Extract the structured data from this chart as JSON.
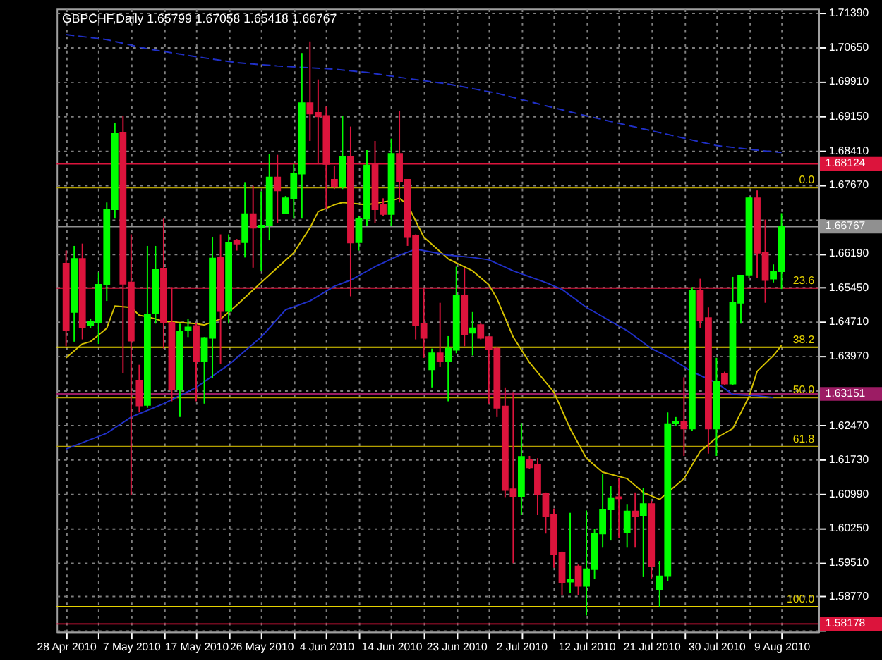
{
  "chart_data": {
    "type": "candlestick",
    "title": "GBPCHF,Daily  1.65799 1.67058 1.65418 1.66767",
    "categories": [
      "28 Apr 2010",
      null,
      null,
      null,
      null,
      null,
      null,
      null,
      "7 May 2010",
      null,
      null,
      null,
      null,
      null,
      null,
      null,
      "17 May 2010",
      null,
      null,
      null,
      null,
      null,
      null,
      null,
      "26 May 2010",
      null,
      null,
      null,
      null,
      null,
      null,
      null,
      "4 Jun 2010",
      null,
      null,
      null,
      null,
      null,
      null,
      null,
      "14 Jun 2010",
      null,
      null,
      null,
      null,
      null,
      null,
      null,
      "23 Jun 2010",
      null,
      null,
      null,
      null,
      null,
      null,
      null,
      "2 Jul 2010",
      null,
      null,
      null,
      null,
      null,
      null,
      null,
      "12 Jul 2010",
      null,
      null,
      null,
      null,
      null,
      null,
      null,
      "21 Jul 2010",
      null,
      null,
      null,
      null,
      null,
      null,
      null,
      "30 Jul 2010",
      null,
      null,
      null,
      null,
      null,
      null,
      null,
      "9 Aug 2010"
    ],
    "ohlc": [
      [
        1.6597,
        1.6625,
        1.6418,
        1.6452
      ],
      [
        1.6492,
        1.6635,
        1.6428,
        1.6607
      ],
      [
        1.6607,
        1.664,
        1.6433,
        1.6459
      ],
      [
        1.6464,
        1.6477,
        1.6457,
        1.6472
      ],
      [
        1.6469,
        1.6578,
        1.6423,
        1.6551
      ],
      [
        1.6551,
        1.6729,
        1.6516,
        1.6714
      ],
      [
        1.6714,
        1.6901,
        1.6694,
        1.6877
      ],
      [
        1.6879,
        1.6916,
        1.6359,
        1.6553
      ],
      [
        1.6556,
        1.666,
        1.6097,
        1.643
      ],
      [
        1.6344,
        1.6378,
        1.6275,
        1.629
      ],
      [
        1.6291,
        1.6635,
        1.6285,
        1.6487
      ],
      [
        1.6489,
        1.6635,
        1.6467,
        1.6583
      ],
      [
        1.6586,
        1.6694,
        1.6413,
        1.6469
      ],
      [
        1.6469,
        1.6546,
        1.6299,
        1.6324
      ],
      [
        1.6324,
        1.6467,
        1.6265,
        1.6449
      ],
      [
        1.6452,
        1.6477,
        1.6438,
        1.6459
      ],
      [
        1.6462,
        1.6469,
        1.6299,
        1.6386
      ],
      [
        1.6386,
        1.6438,
        1.6294,
        1.6436
      ],
      [
        1.6436,
        1.6654,
        1.6349,
        1.6608
      ],
      [
        1.661,
        1.666,
        1.638,
        1.6494
      ],
      [
        1.6494,
        1.666,
        1.6467,
        1.6642
      ],
      [
        1.6647,
        1.665,
        1.6625,
        1.664
      ],
      [
        1.6643,
        1.6773,
        1.661,
        1.6704
      ],
      [
        1.6704,
        1.6765,
        1.6588,
        1.6674
      ],
      [
        1.6676,
        1.6753,
        1.6581,
        1.6679
      ],
      [
        1.6679,
        1.6834,
        1.6647,
        1.6783
      ],
      [
        1.6783,
        1.6832,
        1.6684,
        1.6755
      ],
      [
        1.6706,
        1.6743,
        1.6704,
        1.6738
      ],
      [
        1.6738,
        1.6812,
        1.6694,
        1.6791
      ],
      [
        1.6791,
        1.7052,
        1.6694,
        1.6944
      ],
      [
        1.6944,
        1.7077,
        1.6862,
        1.6921
      ],
      [
        1.6923,
        1.6995,
        1.6812,
        1.6915
      ],
      [
        1.6916,
        1.6936,
        1.6714,
        1.6812
      ],
      [
        1.6778,
        1.6808,
        1.6758,
        1.6763
      ],
      [
        1.6763,
        1.6916,
        1.6758,
        1.6827
      ],
      [
        1.6827,
        1.6893,
        1.6526,
        1.6642
      ],
      [
        1.6643,
        1.6699,
        1.6625,
        1.6694
      ],
      [
        1.6694,
        1.6842,
        1.6679,
        1.6809
      ],
      [
        1.6812,
        1.6862,
        1.6684,
        1.6714
      ],
      [
        1.6724,
        1.6738,
        1.6699,
        1.6704
      ],
      [
        1.6704,
        1.6867,
        1.6679,
        1.6834
      ],
      [
        1.6834,
        1.6926,
        1.6729,
        1.6775
      ],
      [
        1.6778,
        1.6778,
        1.6635,
        1.6654
      ],
      [
        1.6657,
        1.666,
        1.6433,
        1.6464
      ],
      [
        1.6467,
        1.6544,
        1.6393,
        1.6436
      ],
      [
        1.6368,
        1.6413,
        1.6329,
        1.6403
      ],
      [
        1.6403,
        1.6512,
        1.6373,
        1.6385
      ],
      [
        1.6385,
        1.644,
        1.6299,
        1.6413
      ],
      [
        1.641,
        1.659,
        1.6403,
        1.6528
      ],
      [
        1.6528,
        1.6586,
        1.6418,
        1.6444
      ],
      [
        1.6447,
        1.6492,
        1.6398,
        1.6457
      ],
      [
        1.6464,
        1.6469,
        1.6433,
        1.6436
      ],
      [
        1.6438,
        1.644,
        1.6294,
        1.6411
      ],
      [
        1.6413,
        1.6416,
        1.6265,
        1.6285
      ],
      [
        1.6288,
        1.6329,
        1.6092,
        1.6107
      ],
      [
        1.6109,
        1.6319,
        1.5949,
        1.6094
      ],
      [
        1.6094,
        1.6252,
        1.6053,
        1.6179
      ],
      [
        1.6173,
        1.6181,
        1.6153,
        1.6156
      ],
      [
        1.6161,
        1.6176,
        1.6053,
        1.6097
      ],
      [
        1.61,
        1.6102,
        1.6013,
        1.605
      ],
      [
        1.6053,
        1.6067,
        1.5939,
        1.5969
      ],
      [
        1.5971,
        1.5974,
        1.588,
        1.5908
      ],
      [
        1.5909,
        1.6058,
        1.5885,
        1.5913
      ],
      [
        1.5942,
        1.5946,
        1.588,
        1.59
      ],
      [
        1.59,
        1.6063,
        1.5836,
        1.5936
      ],
      [
        1.5936,
        1.6023,
        1.5915,
        1.6013
      ],
      [
        1.6013,
        1.6142,
        1.5984,
        1.6065
      ],
      [
        1.6065,
        1.6117,
        1.5998,
        1.609
      ],
      [
        1.6092,
        1.6132,
        1.6003,
        1.6089
      ],
      [
        1.6015,
        1.6077,
        1.5984,
        1.6061
      ],
      [
        1.6061,
        1.6102,
        1.5984,
        1.6051
      ],
      [
        1.6053,
        1.6112,
        1.5919,
        1.6077
      ],
      [
        1.6077,
        1.6084,
        1.5916,
        1.5942
      ],
      [
        1.5893,
        1.5954,
        1.5855,
        1.5921
      ],
      [
        1.5921,
        1.6275,
        1.591,
        1.625
      ],
      [
        1.6252,
        1.6265,
        1.6245,
        1.6255
      ],
      [
        1.6255,
        1.6351,
        1.6181,
        1.624
      ],
      [
        1.624,
        1.6546,
        1.6235,
        1.6538
      ],
      [
        1.6538,
        1.6564,
        1.6457,
        1.6474
      ],
      [
        1.6479,
        1.6502,
        1.6186,
        1.624
      ],
      [
        1.624,
        1.6393,
        1.6181,
        1.6341
      ],
      [
        1.6359,
        1.6363,
        1.6334,
        1.6337
      ],
      [
        1.6337,
        1.6568,
        1.6334,
        1.6512
      ],
      [
        1.6512,
        1.6571,
        1.6467,
        1.6571
      ],
      [
        1.6573,
        1.6741,
        1.6566,
        1.6738
      ],
      [
        1.6738,
        1.6755,
        1.6566,
        1.662
      ],
      [
        1.662,
        1.6692,
        1.6512,
        1.6561
      ],
      [
        1.6564,
        1.6595,
        1.6556,
        1.6579
      ],
      [
        1.65799,
        1.67058,
        1.65418,
        1.66767
      ]
    ],
    "colors": [
      "#dc143c",
      "#00ff00",
      "#dc143c",
      "#00ff00",
      "#00ff00",
      "#00ff00",
      "#00ff00",
      "#dc143c",
      "#dc143c",
      "#dc143c",
      "#00ff00",
      "#00ff00",
      "#dc143c",
      "#dc143c",
      "#00ff00",
      "#00ff00",
      "#dc143c",
      "#00ff00",
      "#00ff00",
      "#dc143c",
      "#00ff00",
      "#dc143c",
      "#00ff00",
      "#dc143c",
      "#00ff00",
      "#00ff00",
      "#dc143c",
      "#00ff00",
      "#00ff00",
      "#00ff00",
      "#dc143c",
      "#dc143c",
      "#dc143c",
      "#dc143c",
      "#00ff00",
      "#dc143c",
      "#00ff00",
      "#00ff00",
      "#dc143c",
      "#dc143c",
      "#00ff00",
      "#dc143c",
      "#dc143c",
      "#dc143c",
      "#dc143c",
      "#00ff00",
      "#dc143c",
      "#00ff00",
      "#00ff00",
      "#dc143c",
      "#00ff00",
      "#dc143c",
      "#dc143c",
      "#dc143c",
      "#dc143c",
      "#dc143c",
      "#00ff00",
      "#dc143c",
      "#dc143c",
      "#dc143c",
      "#dc143c",
      "#dc143c",
      "#00ff00",
      "#dc143c",
      "#00ff00",
      "#00ff00",
      "#00ff00",
      "#00ff00",
      "#dc143c",
      "#00ff00",
      "#dc143c",
      "#00ff00",
      "#dc143c",
      "#00ff00",
      "#00ff00",
      "#00ff00",
      "#dc143c",
      "#00ff00",
      "#dc143c",
      "#dc143c",
      "#00ff00",
      "#dc143c",
      "#00ff00",
      "#00ff00",
      "#00ff00",
      "#dc143c",
      "#dc143c",
      "#00ff00",
      "#00ff00"
    ],
    "series": [
      {
        "type": "line",
        "color": "#d4c000",
        "values": [
          1.6393,
          null,
          1.6423,
          1.6428,
          null,
          1.6457,
          1.6505,
          null,
          1.6502,
          1.6485,
          1.6482,
          null,
          1.6472,
          null,
          null,
          null,
          1.6467,
          1.6464,
          null,
          1.6477,
          null,
          1.6507,
          null,
          null,
          1.6556,
          null,
          null,
          null,
          1.662,
          null,
          1.6674,
          1.6709,
          null,
          1.6724,
          1.6729,
          null,
          null,
          1.6724,
          null,
          null,
          1.6733,
          1.6738,
          1.6724,
          null,
          1.6654,
          null,
          null,
          1.6607,
          null,
          null,
          1.6581,
          null,
          1.6551,
          1.6521,
          null,
          1.6438,
          null,
          1.6383,
          null,
          null,
          1.6319,
          null,
          1.624,
          null,
          1.6176,
          null,
          1.6146,
          null,
          null,
          1.6132,
          null,
          1.6102,
          null,
          1.6087,
          null,
          1.6117,
          1.6132,
          null,
          1.6191,
          null,
          1.622,
          null,
          1.624,
          null,
          1.6309,
          1.6364,
          null,
          1.6398,
          1.642
        ]
      },
      {
        "type": "line",
        "color": "#2030c8",
        "values": [
          1.6196,
          null,
          null,
          null,
          null,
          1.623,
          null,
          null,
          1.6265,
          null,
          null,
          null,
          1.6294,
          null,
          null,
          null,
          1.6329,
          null,
          null,
          null,
          1.6378,
          null,
          null,
          null,
          1.6438,
          null,
          null,
          1.6497,
          null,
          null,
          1.6516,
          null,
          null,
          1.6548,
          null,
          1.6561,
          null,
          null,
          1.659,
          null,
          null,
          1.6615,
          null,
          1.6628,
          null,
          null,
          null,
          1.6615,
          null,
          null,
          1.661,
          null,
          1.6605,
          null,
          null,
          1.6581,
          null,
          null,
          null,
          1.6556,
          null,
          1.6541,
          null,
          null,
          1.6502,
          null,
          null,
          null,
          null,
          1.6452,
          null,
          null,
          1.6413,
          null,
          1.6396,
          null,
          null,
          1.6363,
          null,
          null,
          1.6339,
          null,
          1.6314,
          null,
          null,
          1.6311,
          null,
          1.6307,
          null
        ]
      },
      {
        "type": "line",
        "color": "#2030c8",
        "line_style": "dashed",
        "values": [
          1.7092,
          null,
          null,
          null,
          null,
          1.7081,
          null,
          null,
          null,
          null,
          1.7061,
          null,
          null,
          null,
          null,
          null,
          1.7044,
          null,
          null,
          null,
          null,
          1.7031,
          null,
          null,
          null,
          null,
          1.7024,
          null,
          null,
          null,
          null,
          null,
          null,
          1.7017,
          null,
          null,
          null,
          1.701,
          null,
          null,
          null,
          null,
          1.6997,
          null,
          null,
          null,
          null,
          1.6985,
          null,
          null,
          null,
          null,
          null,
          1.6965,
          null,
          null,
          null,
          null,
          null,
          1.6938,
          null,
          null,
          null,
          null,
          1.6916,
          null,
          null,
          null,
          null,
          1.6896,
          null,
          null,
          null,
          null,
          null,
          1.6872,
          null,
          null,
          null,
          null,
          1.6852,
          null,
          null,
          null,
          null,
          1.6842,
          null,
          null,
          1.6837
        ]
      }
    ],
    "annotations": [
      {
        "text": "0.0",
        "y": 1.6761
      },
      {
        "text": "23.6",
        "y": 1.6544
      },
      {
        "text": "38.2",
        "y": 1.6416
      },
      {
        "text": "50.0",
        "y": 1.6307
      },
      {
        "text": "61.8",
        "y": 1.6201
      },
      {
        "text": "100.0",
        "y": 1.5855
      }
    ],
    "ref_lines": [
      {
        "axis": "y",
        "value": 1.6544,
        "color": "#dc143c"
      },
      {
        "axis": "y",
        "value": 1.68124,
        "label": "1.68124",
        "color": "#dc143c"
      },
      {
        "axis": "y",
        "value": 1.66767,
        "label": "1.66767",
        "color": "#909090"
      },
      {
        "axis": "y",
        "value": 1.63151,
        "label": "1.63151",
        "color": "#9c1c64"
      },
      {
        "axis": "y",
        "value": 1.58178,
        "label": "1.58178",
        "color": "#dc143c"
      },
      {
        "axis": "y",
        "value": 1.6761,
        "color": "#b4a000"
      },
      {
        "axis": "y",
        "value": 1.6416,
        "color": "#e6d200"
      },
      {
        "axis": "y",
        "value": 1.6307,
        "color": "#b4a000"
      },
      {
        "axis": "y",
        "value": 1.6201,
        "color": "#b4a000"
      },
      {
        "axis": "y",
        "value": 1.5855,
        "color": "#e6d200"
      }
    ],
    "ylim": [
      1.5801,
      1.7148
    ],
    "yticks": [
      {
        "value": 1.5803,
        "label": null
      },
      {
        "value": 1.5877,
        "label": "1.58770"
      },
      {
        "value": 1.5951,
        "label": "1.59510"
      },
      {
        "value": 1.6025,
        "label": "1.60250"
      },
      {
        "value": 1.6099,
        "label": "1.60990"
      },
      {
        "value": 1.6173,
        "label": "1.61730"
      },
      {
        "value": 1.6247,
        "label": "1.62470"
      },
      {
        "value": 1.6323,
        "label": null
      },
      {
        "value": 1.6397,
        "label": "1.63970"
      },
      {
        "value": 1.6471,
        "label": "1.64710"
      },
      {
        "value": 1.6545,
        "label": "1.65450"
      },
      {
        "value": 1.6619,
        "label": "1.66190"
      },
      {
        "value": 1.6693,
        "label": null
      },
      {
        "value": 1.6767,
        "label": "1.67670"
      },
      {
        "value": 1.6841,
        "label": "1.68410"
      },
      {
        "value": 1.6915,
        "label": "1.69150"
      },
      {
        "value": 1.6991,
        "label": "1.69910"
      },
      {
        "value": 1.7065,
        "label": "1.70650"
      },
      {
        "value": 1.7139,
        "label": "1.71390"
      }
    ],
    "grid": true
  }
}
